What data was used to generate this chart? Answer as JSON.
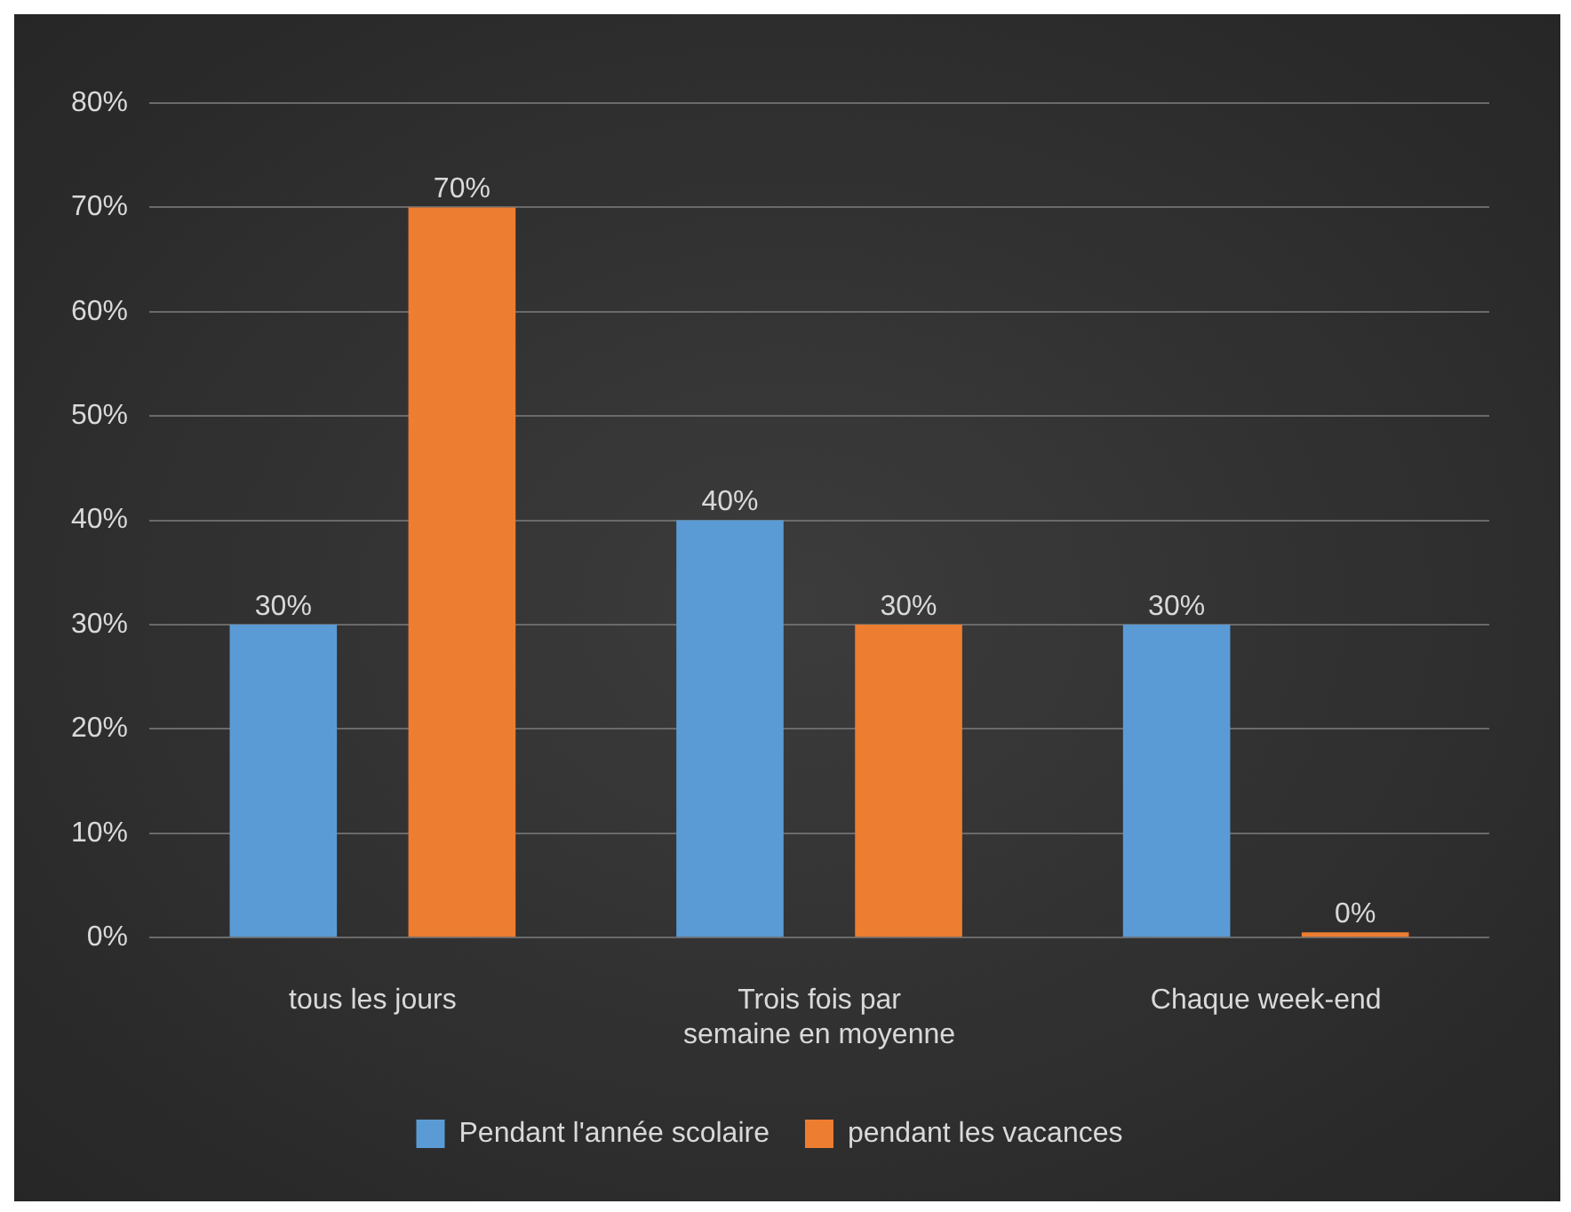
{
  "chart_data": {
    "type": "bar",
    "categories": [
      "tous les jours",
      "Trois fois par semaine en moyenne",
      "Chaque week-end"
    ],
    "series": [
      {
        "name": "Pendant l'année scolaire",
        "color": "#5b9bd5",
        "values": [
          30,
          40,
          30
        ],
        "value_labels": [
          "30%",
          "40%",
          "30%"
        ]
      },
      {
        "name": "pendant les vacances",
        "color": "#ed7d31",
        "values": [
          70,
          30,
          0
        ],
        "value_labels": [
          "70%",
          "30%",
          "0%"
        ]
      }
    ],
    "ylim": [
      0,
      80
    ],
    "yticks": [
      {
        "value": 0,
        "label": "0%"
      },
      {
        "value": 10,
        "label": "10%"
      },
      {
        "value": 20,
        "label": "20%"
      },
      {
        "value": 30,
        "label": "30%"
      },
      {
        "value": 40,
        "label": "40%"
      },
      {
        "value": 50,
        "label": "50%"
      },
      {
        "value": 60,
        "label": "60%"
      },
      {
        "value": 70,
        "label": "70%"
      },
      {
        "value": 80,
        "label": "80%"
      }
    ],
    "grid": "y",
    "legend": "bottom"
  }
}
